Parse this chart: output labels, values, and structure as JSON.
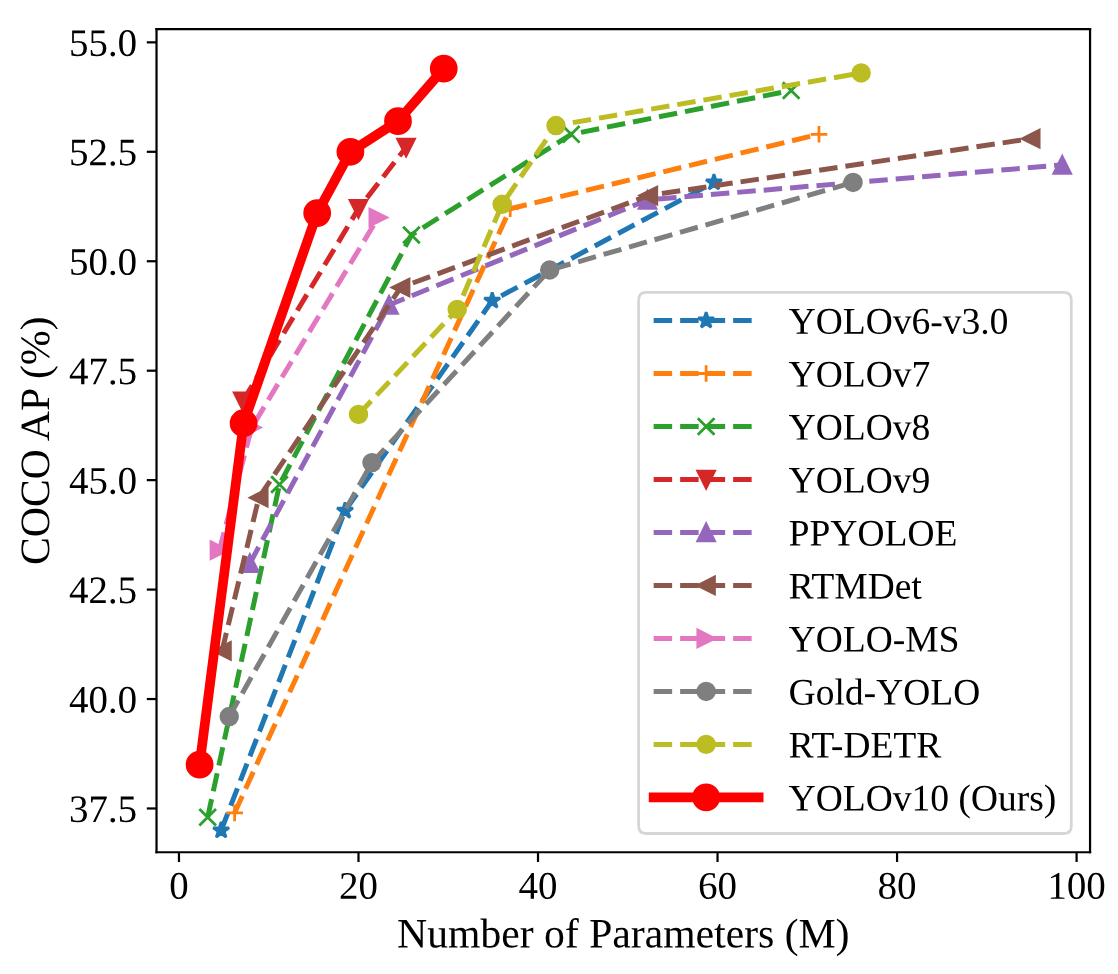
{
  "chart_data": {
    "type": "line",
    "xlabel": "Number of Parameters (M)",
    "ylabel": "COCO AP (%)",
    "xlim": [
      -2.5,
      101.5
    ],
    "ylim": [
      36.5,
      55.3
    ],
    "xticks": [
      0,
      20,
      40,
      60,
      80,
      100
    ],
    "yticks": [
      {
        "value": 37.5,
        "label": "37.5"
      },
      {
        "value": 40,
        "label": "40.0"
      },
      {
        "value": 42.5,
        "label": "42.5"
      },
      {
        "value": 45,
        "label": "45.0"
      },
      {
        "value": 47.5,
        "label": "47.5"
      },
      {
        "value": 50,
        "label": "50.0"
      },
      {
        "value": 52.5,
        "label": "52.5"
      },
      {
        "value": 55,
        "label": "55.0"
      }
    ],
    "grid": false,
    "legend": "lower right",
    "line_style": "dashed",
    "series": [
      {
        "name": "YOLOv6-v3.0",
        "color": "#1f77b4",
        "marker": "star",
        "x": [
          4.7,
          18.5,
          34.9,
          59.6
        ],
        "values": [
          37.0,
          44.3,
          49.1,
          51.8
        ]
      },
      {
        "name": "YOLOv7",
        "color": "#ff7f0e",
        "marker": "plus",
        "x": [
          6.2,
          36.9,
          71.3
        ],
        "values": [
          37.4,
          51.2,
          52.9
        ]
      },
      {
        "name": "YOLOv8",
        "color": "#2ca02c",
        "marker": "cross",
        "x": [
          3.2,
          11.2,
          25.9,
          43.7,
          68.2
        ],
        "values": [
          37.3,
          44.9,
          50.6,
          52.9,
          53.9
        ]
      },
      {
        "name": "YOLOv9",
        "color": "#d62728",
        "marker": "triangle_down",
        "x": [
          7.1,
          20.0,
          25.3
        ],
        "values": [
          46.8,
          51.2,
          52.6
        ]
      },
      {
        "name": "PPYOLOE",
        "color": "#9467bd",
        "marker": "triangle",
        "x": [
          7.9,
          23.4,
          52.2,
          98.4
        ],
        "values": [
          43.1,
          49.0,
          51.4,
          52.2
        ]
      },
      {
        "name": "RTMDet",
        "color": "#8c564b",
        "marker": "triangle_left",
        "x": [
          4.8,
          8.9,
          24.7,
          52.3,
          94.9
        ],
        "values": [
          41.1,
          44.6,
          49.4,
          51.5,
          52.8
        ]
      },
      {
        "name": "YOLO-MS",
        "color": "#e377c2",
        "marker": "triangle_right",
        "x": [
          4.5,
          8.1,
          22.2
        ],
        "values": [
          43.4,
          46.2,
          51.0
        ]
      },
      {
        "name": "Gold-YOLO",
        "color": "#7f7f7f",
        "marker": "circle",
        "x": [
          5.6,
          21.5,
          41.3,
          75.1
        ],
        "values": [
          39.6,
          45.4,
          49.8,
          51.8
        ]
      },
      {
        "name": "RT-DETR",
        "color": "#bcbd22",
        "marker": "circle",
        "x": [
          20,
          31,
          36,
          42,
          76
        ],
        "values": [
          46.5,
          48.9,
          51.3,
          53.1,
          54.3
        ]
      },
      {
        "name": "YOLOv10 (Ours)",
        "color": "#ff0000",
        "marker": "circle",
        "line_style": "solid",
        "x": [
          2.3,
          7.2,
          15.4,
          19.1,
          24.4,
          29.5
        ],
        "values": [
          38.5,
          46.3,
          51.1,
          52.5,
          53.2,
          54.4
        ]
      }
    ]
  }
}
